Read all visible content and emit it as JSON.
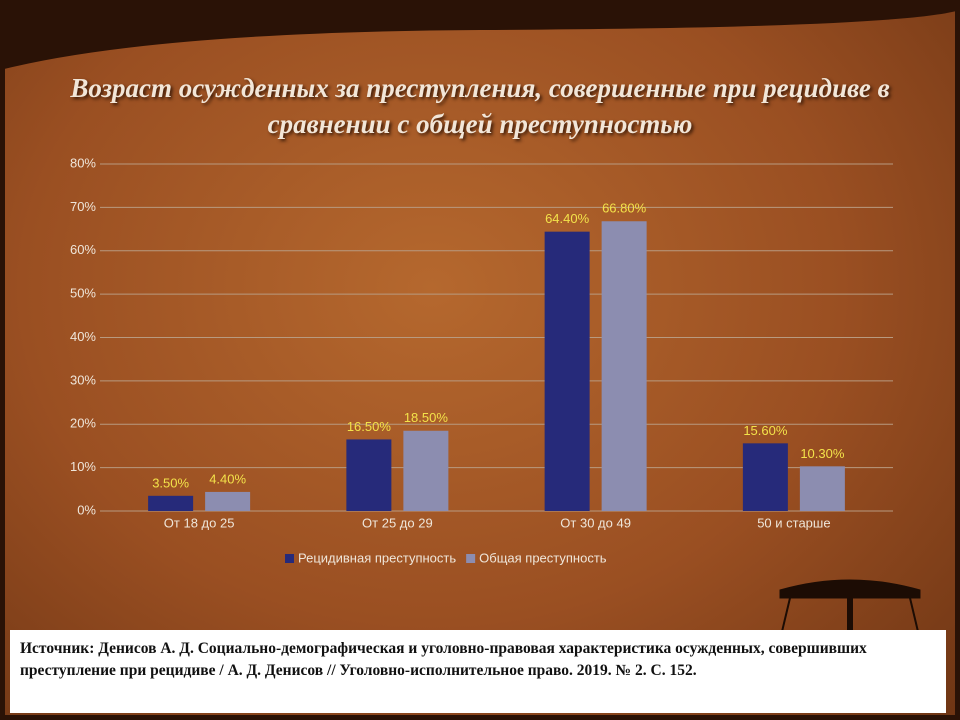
{
  "chart_data": {
    "type": "bar",
    "title": "Возраст осужденных за преступления, совершенные при рецидиве  в сравнении с общей преступностью",
    "categories": [
      "От 18 до 25",
      "От 25 до 29",
      "От 30 до 49",
      "50 и старше"
    ],
    "series": [
      {
        "name": "Рецидивная преступность",
        "color": "#262a7a",
        "values": [
          3.5,
          16.5,
          64.4,
          15.6
        ],
        "value_labels": [
          "3.50%",
          "16.50%",
          "64.40%",
          "15.60%"
        ]
      },
      {
        "name": "Общая преступность",
        "color": "#8c8db0",
        "values": [
          4.4,
          18.5,
          66.8,
          10.3
        ],
        "value_labels": [
          "4.40%",
          "18.50%",
          "66.80%",
          "10.30%"
        ]
      }
    ],
    "ylim": [
      0,
      80
    ],
    "yticks": [
      {
        "value": 0,
        "label": "0%"
      },
      {
        "value": 10,
        "label": "10%"
      },
      {
        "value": 20,
        "label": "20%"
      },
      {
        "value": 30,
        "label": "30%"
      },
      {
        "value": 40,
        "label": "40%"
      },
      {
        "value": 50,
        "label": "50%"
      },
      {
        "value": 60,
        "label": "60%"
      },
      {
        "value": 70,
        "label": "70%"
      },
      {
        "value": 80,
        "label": "80%"
      }
    ],
    "grid": true,
    "legend": "bottom"
  },
  "source": "Источник: Денисов А. Д. Социально-демографическая и уголовно-правовая характеристика осужденных, совершивших преступление при рецидиве / А. Д. Денисов // Уголовно-исполнительное право.  2019.  № 2.  С. 152."
}
